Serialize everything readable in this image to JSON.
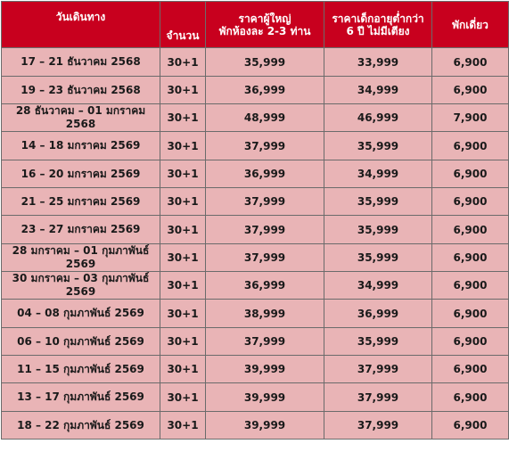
{
  "table": {
    "headers": {
      "period": "วันเดินทาง",
      "quantity": "จำนวน",
      "adult_price_line1": "ราคาผู้ใหญ่",
      "adult_price_line2": "พักห้องละ 2-3 ท่าน",
      "child_price_line1": "ราคาเด็กอายุต่ำกว่า",
      "child_price_line2": "6 ปี ไม่มีเตียง",
      "single": "พักเดี่ยว"
    },
    "rows": [
      {
        "period": "17 – 21 ธันวาคม 2568",
        "quantity": "30+1",
        "adult": "35,999",
        "child": "33,999",
        "single": "6,900"
      },
      {
        "period": "19 – 23 ธันวาคม 2568",
        "quantity": "30+1",
        "adult": "36,999",
        "child": "34,999",
        "single": "6,900"
      },
      {
        "period": "28 ธันวาคม – 01 มกราคม 2568",
        "quantity": "30+1",
        "adult": "48,999",
        "child": "46,999",
        "single": "7,900"
      },
      {
        "period": "14 – 18 มกราคม 2569",
        "quantity": "30+1",
        "adult": "37,999",
        "child": "35,999",
        "single": "6,900"
      },
      {
        "period": "16 – 20 มกราคม 2569",
        "quantity": "30+1",
        "adult": "36,999",
        "child": "34,999",
        "single": "6,900"
      },
      {
        "period": "21 – 25 มกราคม 2569",
        "quantity": "30+1",
        "adult": "37,999",
        "child": "35,999",
        "single": "6,900"
      },
      {
        "period": "23 – 27 มกราคม 2569",
        "quantity": "30+1",
        "adult": "37,999",
        "child": "35,999",
        "single": "6,900"
      },
      {
        "period": "28 มกราคม – 01 กุมภาพันธ์ 2569",
        "quantity": "30+1",
        "adult": "37,999",
        "child": "35,999",
        "single": "6,900"
      },
      {
        "period": "30 มกราคม – 03 กุมภาพันธ์ 2569",
        "quantity": "30+1",
        "adult": "36,999",
        "child": "34,999",
        "single": "6,900"
      },
      {
        "period": "04 – 08 กุมภาพันธ์ 2569",
        "quantity": "30+1",
        "adult": "38,999",
        "child": "36,999",
        "single": "6,900"
      },
      {
        "period": "06 – 10 กุมภาพันธ์ 2569",
        "quantity": "30+1",
        "adult": "37,999",
        "child": "35,999",
        "single": "6,900"
      },
      {
        "period": "11 – 15 กุมภาพันธ์ 2569",
        "quantity": "30+1",
        "adult": "39,999",
        "child": "37,999",
        "single": "6,900"
      },
      {
        "period": "13 – 17 กุมภาพันธ์ 2569",
        "quantity": "30+1",
        "adult": "39,999",
        "child": "37,999",
        "single": "6,900"
      },
      {
        "period": "18 – 22 กุมภาพันธ์ 2569",
        "quantity": "30+1",
        "adult": "39,999",
        "child": "37,999",
        "single": "6,900"
      }
    ]
  },
  "colors": {
    "header_bg": "#c8001e",
    "header_text": "#ffffff",
    "row_bg": "#e9b4b6",
    "border": "#6b6b6b"
  }
}
